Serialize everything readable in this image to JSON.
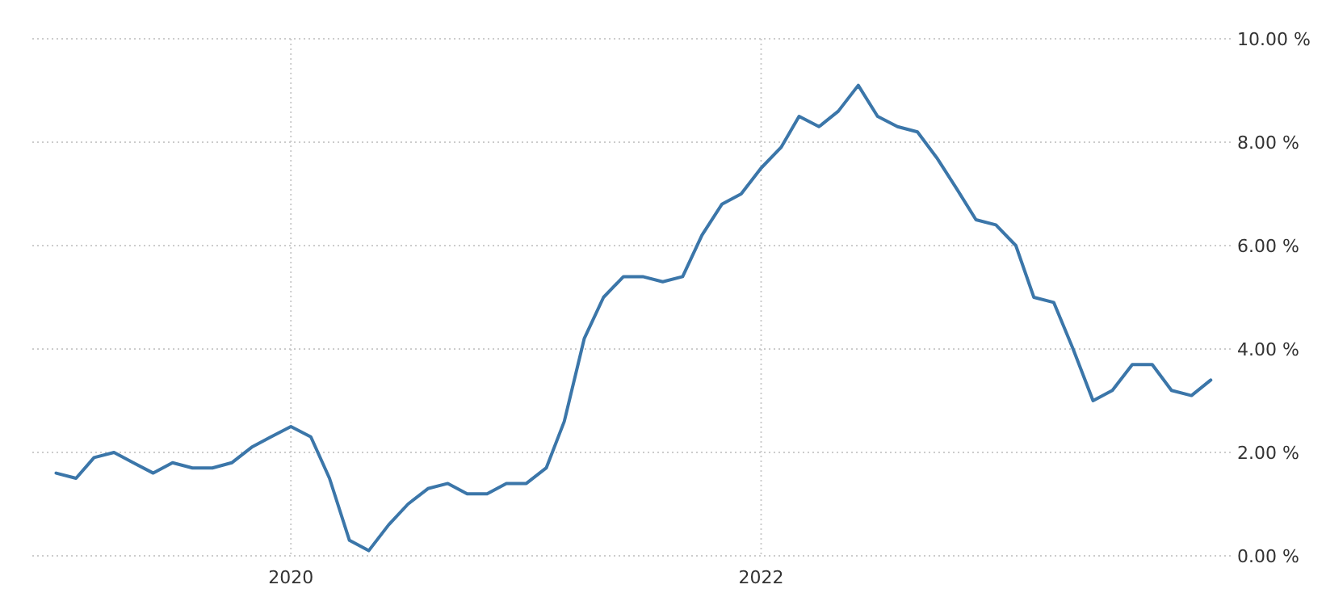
{
  "chart_data": {
    "type": "line",
    "x": [
      "2019-01",
      "2019-02",
      "2019-03",
      "2019-04",
      "2019-05",
      "2019-06",
      "2019-07",
      "2019-08",
      "2019-09",
      "2019-10",
      "2019-11",
      "2019-12",
      "2020-01",
      "2020-02",
      "2020-03",
      "2020-04",
      "2020-05",
      "2020-06",
      "2020-07",
      "2020-08",
      "2020-09",
      "2020-10",
      "2020-11",
      "2020-12",
      "2021-01",
      "2021-02",
      "2021-03",
      "2021-04",
      "2021-05",
      "2021-06",
      "2021-07",
      "2021-08",
      "2021-09",
      "2021-10",
      "2021-11",
      "2021-12",
      "2022-01",
      "2022-02",
      "2022-03",
      "2022-04",
      "2022-05",
      "2022-06",
      "2022-07",
      "2022-08",
      "2022-09",
      "2022-10",
      "2022-11",
      "2022-12",
      "2023-01",
      "2023-02",
      "2023-03",
      "2023-04",
      "2023-05",
      "2023-06",
      "2023-07",
      "2023-08",
      "2023-09",
      "2023-10",
      "2023-11",
      "2023-12"
    ],
    "series": [
      {
        "color": "#3b76a9",
        "values": [
          1.6,
          1.5,
          1.9,
          2.0,
          1.8,
          1.6,
          1.8,
          1.7,
          1.7,
          1.8,
          2.1,
          2.3,
          2.5,
          2.3,
          1.5,
          0.3,
          0.1,
          0.6,
          1.0,
          1.3,
          1.4,
          1.2,
          1.2,
          1.4,
          1.4,
          1.7,
          2.6,
          4.2,
          5.0,
          5.4,
          5.4,
          5.3,
          5.4,
          6.2,
          6.8,
          7.0,
          7.5,
          7.9,
          8.5,
          8.3,
          8.6,
          9.1,
          8.5,
          8.3,
          8.2,
          7.7,
          7.1,
          6.5,
          6.4,
          6.0,
          5.0,
          4.9,
          4.0,
          3.0,
          3.2,
          3.7,
          3.7,
          3.2,
          3.1,
          3.4
        ]
      }
    ],
    "xlim": [
      "2018-11-25",
      "2024-01-01"
    ],
    "xticks": [
      "2020",
      "2022"
    ],
    "ylim": [
      0,
      10
    ],
    "yticks": [
      {
        "value": 0,
        "label": "0.00 %"
      },
      {
        "value": 2,
        "label": "2.00 %"
      },
      {
        "value": 4,
        "label": "4.00 %"
      },
      {
        "value": 6,
        "label": "6.00 %"
      },
      {
        "value": 8,
        "label": "8.00 %"
      },
      {
        "value": 10,
        "label": "10.00 %"
      }
    ],
    "grid": true,
    "marker": "none",
    "line_style": "solid"
  }
}
